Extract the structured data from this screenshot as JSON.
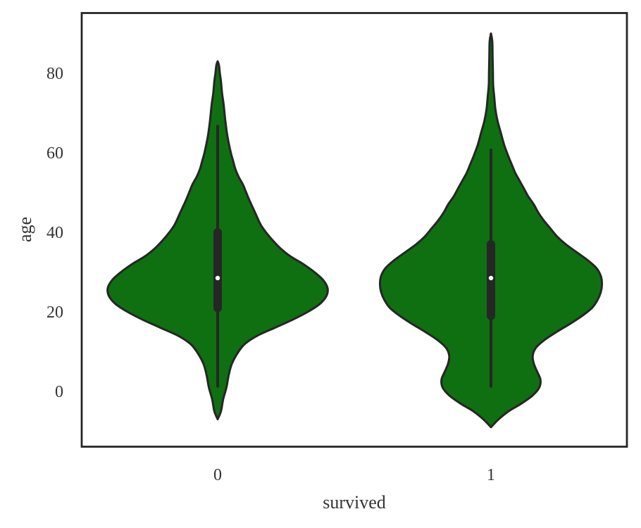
{
  "chart_data": {
    "type": "violin",
    "title": "",
    "xlabel": "survived",
    "ylabel": "age",
    "categories": [
      "0",
      "1"
    ],
    "ylim": [
      -14,
      95
    ],
    "yticks": [
      0,
      20,
      40,
      60,
      80
    ],
    "grid": false,
    "fill_color": "#0e7010",
    "edge_color": "#262626",
    "violins": [
      {
        "category": "0",
        "min": -7,
        "max": 83,
        "whisker_low": 1,
        "whisker_high": 67,
        "q1": 21,
        "median": 28.5,
        "q3": 40,
        "density": [
          [
            -7,
            0.0
          ],
          [
            -5,
            0.03
          ],
          [
            -2,
            0.05
          ],
          [
            1,
            0.08
          ],
          [
            4,
            0.1
          ],
          [
            7,
            0.13
          ],
          [
            10,
            0.19
          ],
          [
            12,
            0.25
          ],
          [
            14,
            0.36
          ],
          [
            16,
            0.52
          ],
          [
            18,
            0.68
          ],
          [
            20,
            0.82
          ],
          [
            22,
            0.93
          ],
          [
            24,
            0.99
          ],
          [
            26,
            1.0
          ],
          [
            28,
            0.96
          ],
          [
            30,
            0.88
          ],
          [
            32,
            0.78
          ],
          [
            34,
            0.66
          ],
          [
            36,
            0.57
          ],
          [
            38,
            0.5
          ],
          [
            40,
            0.44
          ],
          [
            42,
            0.39
          ],
          [
            45,
            0.34
          ],
          [
            48,
            0.29
          ],
          [
            50,
            0.26
          ],
          [
            52,
            0.23
          ],
          [
            54,
            0.19
          ],
          [
            56,
            0.16
          ],
          [
            58,
            0.14
          ],
          [
            60,
            0.12
          ],
          [
            64,
            0.09
          ],
          [
            68,
            0.07
          ],
          [
            72,
            0.055
          ],
          [
            75,
            0.04
          ],
          [
            78,
            0.03
          ],
          [
            80,
            0.02
          ],
          [
            82,
            0.01
          ],
          [
            83,
            0.0
          ]
        ]
      },
      {
        "category": "1",
        "min": -9,
        "max": 90,
        "whisker_low": 1,
        "whisker_high": 61,
        "q1": 19,
        "median": 28.5,
        "q3": 37,
        "density": [
          [
            -9,
            0.0
          ],
          [
            -7,
            0.07
          ],
          [
            -5,
            0.16
          ],
          [
            -3,
            0.28
          ],
          [
            -1,
            0.38
          ],
          [
            1,
            0.44
          ],
          [
            3,
            0.45
          ],
          [
            5,
            0.42
          ],
          [
            7,
            0.39
          ],
          [
            9,
            0.38
          ],
          [
            11,
            0.41
          ],
          [
            13,
            0.49
          ],
          [
            15,
            0.6
          ],
          [
            17,
            0.72
          ],
          [
            19,
            0.83
          ],
          [
            21,
            0.92
          ],
          [
            23,
            0.97
          ],
          [
            25,
            1.0
          ],
          [
            27,
            1.01
          ],
          [
            29,
            1.0
          ],
          [
            31,
            0.96
          ],
          [
            33,
            0.88
          ],
          [
            35,
            0.78
          ],
          [
            37,
            0.68
          ],
          [
            39,
            0.6
          ],
          [
            41,
            0.54
          ],
          [
            43,
            0.48
          ],
          [
            45,
            0.43
          ],
          [
            47,
            0.39
          ],
          [
            49,
            0.34
          ],
          [
            51,
            0.3
          ],
          [
            53,
            0.26
          ],
          [
            55,
            0.22
          ],
          [
            57,
            0.19
          ],
          [
            59,
            0.16
          ],
          [
            62,
            0.12
          ],
          [
            65,
            0.09
          ],
          [
            68,
            0.06
          ],
          [
            71,
            0.04
          ],
          [
            74,
            0.03
          ],
          [
            77,
            0.02
          ],
          [
            80,
            0.018
          ],
          [
            84,
            0.015
          ],
          [
            88,
            0.012
          ],
          [
            90,
            0.0
          ]
        ]
      }
    ]
  }
}
